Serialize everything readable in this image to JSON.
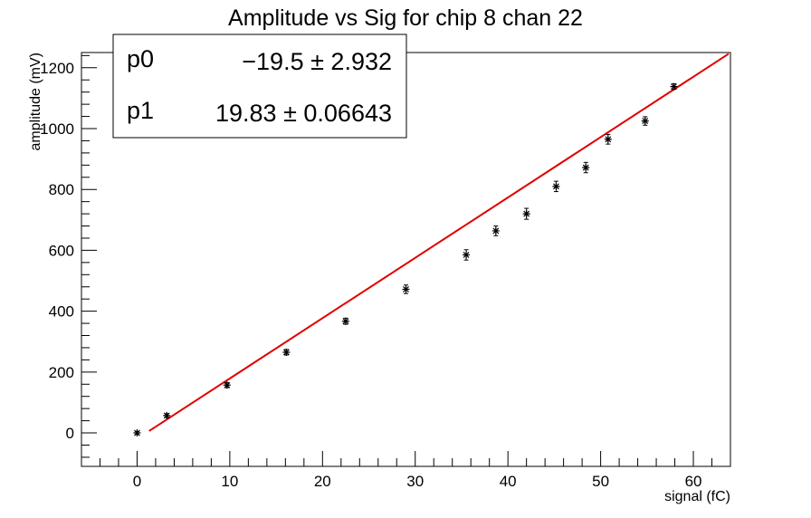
{
  "chart_data": {
    "type": "scatter",
    "title": "Amplitude vs Sig for chip 8 chan 22",
    "xlabel": "signal (fC)",
    "ylabel": "amplitude (mV)",
    "xlim": [
      -6,
      64
    ],
    "ylim": [
      -110,
      1250
    ],
    "x_ticks": [
      0,
      10,
      20,
      30,
      40,
      50,
      60
    ],
    "y_ticks": [
      0,
      200,
      400,
      600,
      800,
      1000,
      1200
    ],
    "grid": false,
    "points": [
      {
        "x": 0.0,
        "y": 0,
        "err": 5
      },
      {
        "x": 3.2,
        "y": 57,
        "err": 6
      },
      {
        "x": 9.7,
        "y": 157,
        "err": 8
      },
      {
        "x": 16.1,
        "y": 265,
        "err": 9
      },
      {
        "x": 22.5,
        "y": 367,
        "err": 10
      },
      {
        "x": 29.0,
        "y": 472,
        "err": 14
      },
      {
        "x": 35.5,
        "y": 585,
        "err": 17
      },
      {
        "x": 38.7,
        "y": 664,
        "err": 16
      },
      {
        "x": 42.0,
        "y": 720,
        "err": 18
      },
      {
        "x": 45.2,
        "y": 810,
        "err": 17
      },
      {
        "x": 48.4,
        "y": 872,
        "err": 17
      },
      {
        "x": 50.8,
        "y": 965,
        "err": 16
      },
      {
        "x": 54.8,
        "y": 1025,
        "err": 14
      },
      {
        "x": 57.9,
        "y": 1138,
        "err": 9
      }
    ],
    "fit": {
      "type": "linear",
      "color": "#e00000",
      "x_range": [
        1.3,
        63.8
      ],
      "p0": -19.5,
      "p1": 19.83
    },
    "stats_box": {
      "rows": [
        {
          "name": "p0",
          "value": "−19.5",
          "error": "2.932"
        },
        {
          "name": "p1",
          "value": "19.83",
          "error": "0.06643"
        }
      ]
    },
    "marker_color": "#000000"
  }
}
